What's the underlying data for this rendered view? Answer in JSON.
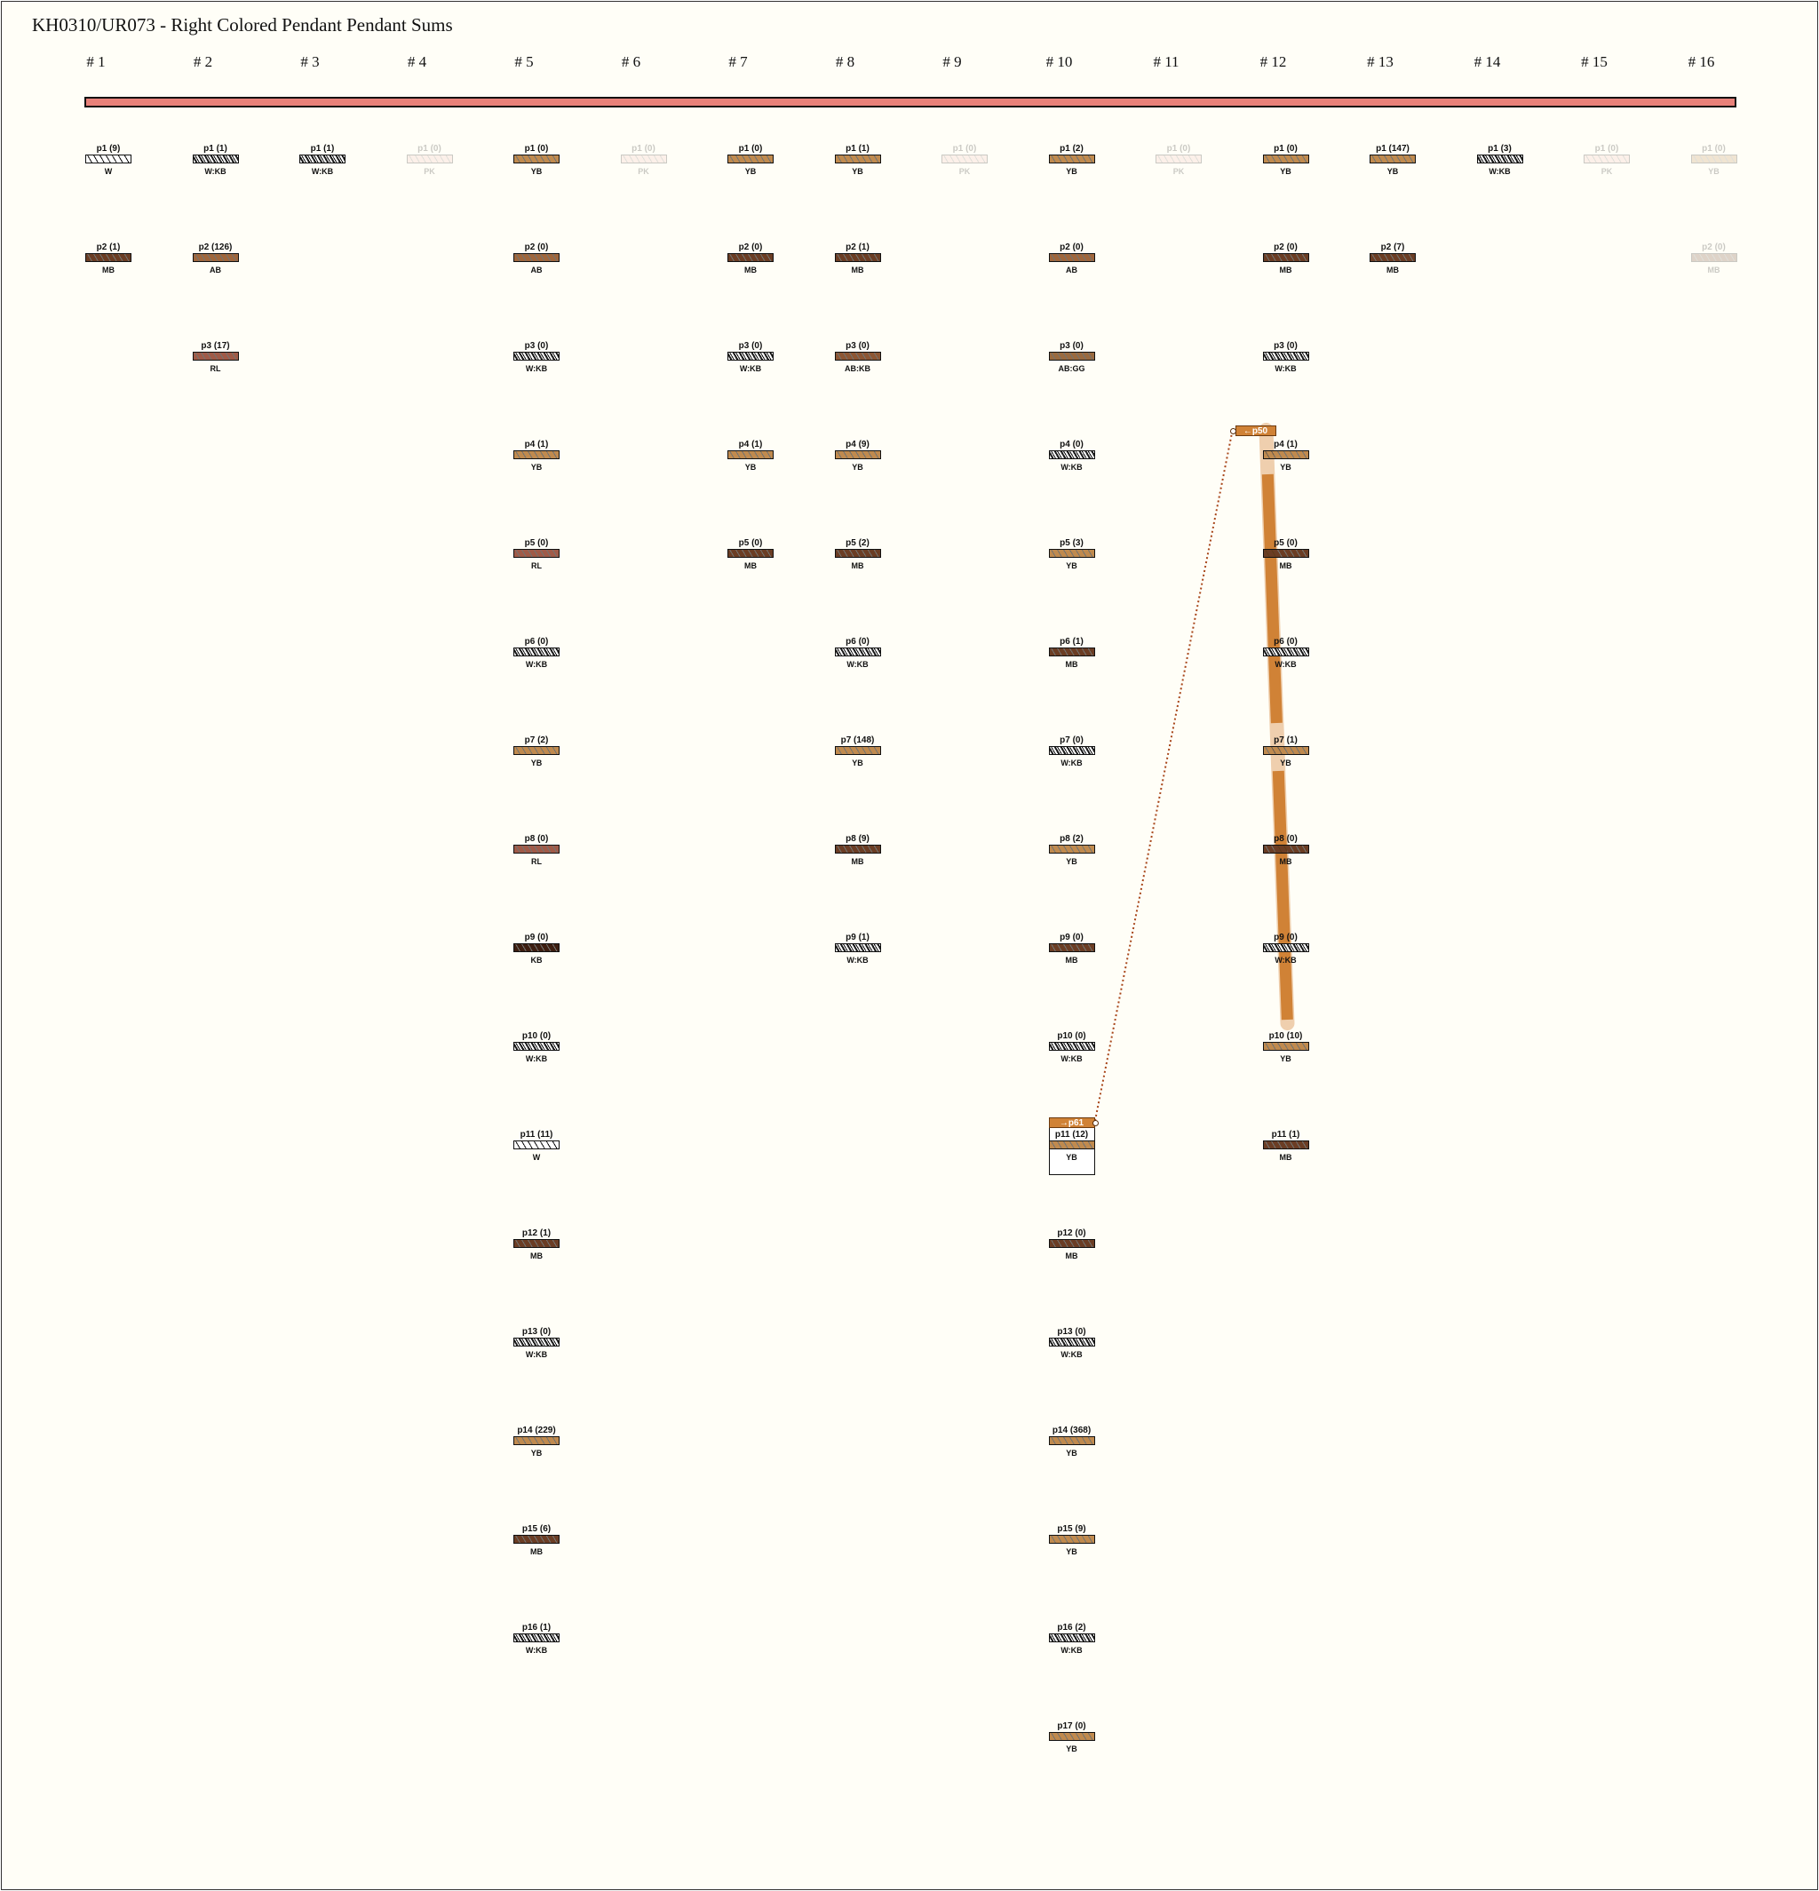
{
  "title": "KH0310/UR073 - Right Colored Pendant Pendant Sums",
  "primary_cord": {
    "color": "#e8817a"
  },
  "colors": {
    "W": "#ffffff",
    "W:KB": "checker",
    "YB": "#c08a4e",
    "MB": "#6b3d24",
    "AB": "#a0663c",
    "RL": "#a05a48",
    "KB": "#3d1e10",
    "PK": "#f2c2bc",
    "AB:KB": "#8d5634",
    "AB:GG": "#9a6a40"
  },
  "columns": [
    {
      "label": "# 1",
      "pendants": [
        {
          "label": "p1 (9)",
          "color": "W"
        },
        {
          "label": "p2 (1)",
          "color": "MB"
        }
      ]
    },
    {
      "label": "# 2",
      "pendants": [
        {
          "label": "p1 (1)",
          "color": "W:KB"
        },
        {
          "label": "p2 (126)",
          "color": "AB"
        },
        {
          "label": "p3 (17)",
          "color": "RL"
        }
      ]
    },
    {
      "label": "# 3",
      "pendants": [
        {
          "label": "p1 (1)",
          "color": "W:KB"
        }
      ]
    },
    {
      "label": "# 4",
      "pendants": [
        {
          "label": "p1 (0)",
          "color": "PK",
          "faint": true
        }
      ]
    },
    {
      "label": "# 5",
      "pendants": [
        {
          "label": "p1 (0)",
          "color": "YB"
        },
        {
          "label": "p2 (0)",
          "color": "AB"
        },
        {
          "label": "p3 (0)",
          "color": "W:KB"
        },
        {
          "label": "p4 (1)",
          "color": "YB"
        },
        {
          "label": "p5 (0)",
          "color": "RL"
        },
        {
          "label": "p6 (0)",
          "color": "W:KB"
        },
        {
          "label": "p7 (2)",
          "color": "YB"
        },
        {
          "label": "p8 (0)",
          "color": "RL"
        },
        {
          "label": "p9 (0)",
          "color": "KB"
        },
        {
          "label": "p10 (0)",
          "color": "W:KB"
        },
        {
          "label": "p11 (11)",
          "color": "W"
        },
        {
          "label": "p12 (1)",
          "color": "MB"
        },
        {
          "label": "p13 (0)",
          "color": "W:KB"
        },
        {
          "label": "p14 (229)",
          "color": "YB"
        },
        {
          "label": "p15 (6)",
          "color": "MB"
        },
        {
          "label": "p16 (1)",
          "color": "W:KB"
        }
      ]
    },
    {
      "label": "# 6",
      "pendants": [
        {
          "label": "p1 (0)",
          "color": "PK",
          "faint": true
        }
      ]
    },
    {
      "label": "# 7",
      "pendants": [
        {
          "label": "p1 (0)",
          "color": "YB"
        },
        {
          "label": "p2 (0)",
          "color": "MB"
        },
        {
          "label": "p3 (0)",
          "color": "W:KB"
        },
        {
          "label": "p4 (1)",
          "color": "YB"
        },
        {
          "label": "p5 (0)",
          "color": "MB"
        }
      ]
    },
    {
      "label": "# 8",
      "pendants": [
        {
          "label": "p1 (1)",
          "color": "YB"
        },
        {
          "label": "p2 (1)",
          "color": "MB"
        },
        {
          "label": "p3 (0)",
          "color": "AB:KB"
        },
        {
          "label": "p4 (9)",
          "color": "YB"
        },
        {
          "label": "p5 (2)",
          "color": "MB"
        },
        {
          "label": "p6 (0)",
          "color": "W:KB"
        },
        {
          "label": "p7 (148)",
          "color": "YB"
        },
        {
          "label": "p8 (9)",
          "color": "MB"
        },
        {
          "label": "p9 (1)",
          "color": "W:KB"
        }
      ]
    },
    {
      "label": "# 9",
      "pendants": [
        {
          "label": "p1 (0)",
          "color": "PK",
          "faint": true
        }
      ]
    },
    {
      "label": "# 10",
      "pendants": [
        {
          "label": "p1 (2)",
          "color": "YB"
        },
        {
          "label": "p2 (0)",
          "color": "AB"
        },
        {
          "label": "p3 (0)",
          "color": "AB:GG"
        },
        {
          "label": "p4 (0)",
          "color": "W:KB"
        },
        {
          "label": "p5 (3)",
          "color": "YB"
        },
        {
          "label": "p6 (1)",
          "color": "MB"
        },
        {
          "label": "p7 (0)",
          "color": "W:KB"
        },
        {
          "label": "p8 (2)",
          "color": "YB"
        },
        {
          "label": "p9 (0)",
          "color": "MB"
        },
        {
          "label": "p10 (0)",
          "color": "W:KB"
        },
        {
          "label": "p11 (12)",
          "color": "YB"
        },
        {
          "label": "p12 (0)",
          "color": "MB"
        },
        {
          "label": "p13 (0)",
          "color": "W:KB"
        },
        {
          "label": "p14 (368)",
          "color": "YB"
        },
        {
          "label": "p15 (9)",
          "color": "YB"
        },
        {
          "label": "p16 (2)",
          "color": "W:KB"
        },
        {
          "label": "p17 (0)",
          "color": "YB"
        }
      ]
    },
    {
      "label": "# 11",
      "pendants": [
        {
          "label": "p1 (0)",
          "color": "PK",
          "faint": true
        }
      ]
    },
    {
      "label": "# 12",
      "pendants": [
        {
          "label": "p1 (0)",
          "color": "YB"
        },
        {
          "label": "p2 (0)",
          "color": "MB"
        },
        {
          "label": "p3 (0)",
          "color": "W:KB"
        },
        {
          "label": "p4 (1)",
          "color": "YB"
        },
        {
          "label": "p5 (0)",
          "color": "MB"
        },
        {
          "label": "p6 (0)",
          "color": "W:KB"
        },
        {
          "label": "p7 (1)",
          "color": "YB"
        },
        {
          "label": "p8 (0)",
          "color": "MB"
        },
        {
          "label": "p9 (0)",
          "color": "W:KB"
        },
        {
          "label": "p10 (10)",
          "color": "YB"
        },
        {
          "label": "p11 (1)",
          "color": "MB"
        }
      ]
    },
    {
      "label": "# 13",
      "pendants": [
        {
          "label": "p1 (147)",
          "color": "YB"
        },
        {
          "label": "p2 (7)",
          "color": "MB"
        }
      ]
    },
    {
      "label": "# 14",
      "pendants": [
        {
          "label": "p1 (3)",
          "color": "W:KB"
        }
      ]
    },
    {
      "label": "# 15",
      "pendants": [
        {
          "label": "p1 (0)",
          "color": "PK",
          "faint": true
        }
      ]
    },
    {
      "label": "# 16",
      "pendants": [
        {
          "label": "p1 (0)",
          "color": "YB",
          "faint": true
        },
        {
          "label": "p2 (0)",
          "color": "MB",
          "faint": true
        }
      ]
    }
  ],
  "sum_links": {
    "from_tag": "←p50",
    "to_tag": "→p61",
    "link_color": "#d08236",
    "span_light": "#efcfae"
  }
}
